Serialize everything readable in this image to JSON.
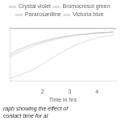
{
  "chart_data": {
    "type": "line",
    "xlabel": "Time in hrs",
    "subtitle": "raph showing the effect of contact time for al",
    "xlim": [
      0.8,
      4.7
    ],
    "ylim": [
      0,
      105
    ],
    "xticks": [
      2,
      3,
      4
    ],
    "tick_labels": "x",
    "grid": false,
    "legend": "top",
    "series": [
      {
        "color": "#aaaaaa",
        "x": [
          0.8,
          4.7
        ],
        "values": [
          100,
          100
        ]
      },
      {
        "name": "Crystal violet",
        "x": [
          0.8,
          1.2,
          1.6,
          2.0,
          2.4,
          2.8,
          3.2,
          3.6,
          4.0,
          4.4,
          4.6
        ],
        "values": [
          52,
          62,
          70,
          76,
          81,
          85,
          88,
          90,
          92,
          93,
          94
        ]
      },
      {
        "name": "Bromocresol green",
        "x": [
          0.8,
          1.2,
          1.6,
          2.0,
          2.4,
          2.8,
          3.2,
          3.6,
          4.0,
          4.4,
          4.6
        ],
        "values": [
          45,
          56,
          65,
          72,
          78,
          83,
          87,
          89,
          91,
          92,
          93
        ]
      },
      {
        "name": "Pararosaniline",
        "x": [
          0.8,
          1.2,
          1.6,
          2.0,
          2.4,
          2.8,
          3.2,
          3.6,
          4.0,
          4.4,
          4.6
        ],
        "values": [
          48,
          60,
          68,
          74,
          80,
          84,
          87,
          89,
          91,
          92,
          93
        ]
      },
      {
        "name": "Victoria blue",
        "x": [
          0.8,
          1.2,
          1.6,
          2.0,
          2.4,
          2.8,
          3.2,
          3.6,
          4.0,
          4.4,
          4.6
        ],
        "values": [
          5,
          12,
          20,
          32,
          45,
          57,
          68,
          76,
          82,
          86,
          88
        ]
      }
    ]
  }
}
